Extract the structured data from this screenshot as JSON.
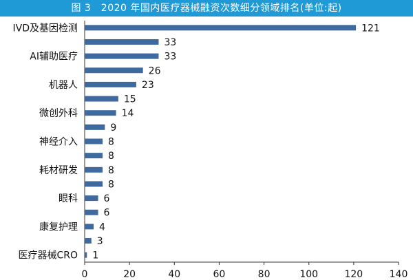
{
  "title": "图 3　2020 年国内医疗器械融资次数细分领域排名(单位:起)",
  "chart_data": {
    "type": "bar",
    "orientation": "horizontal",
    "bar_color": "#3f6aa0",
    "title_bar_color": "#1f9ad6",
    "xlim": [
      0,
      140
    ],
    "xticks": [
      0,
      20,
      40,
      60,
      80,
      100,
      120,
      140
    ],
    "categories": [
      "IVD及基因检测",
      "",
      "AI辅助医疗",
      "",
      "机器人",
      "",
      "微创外科",
      "",
      "神经介入",
      "",
      "耗材研发",
      "",
      "眼科",
      "",
      "康复护理",
      "",
      "医疗器械CRO"
    ],
    "values": [
      121,
      33,
      33,
      26,
      23,
      15,
      14,
      9,
      8,
      8,
      8,
      8,
      6,
      6,
      4,
      3,
      1
    ]
  }
}
